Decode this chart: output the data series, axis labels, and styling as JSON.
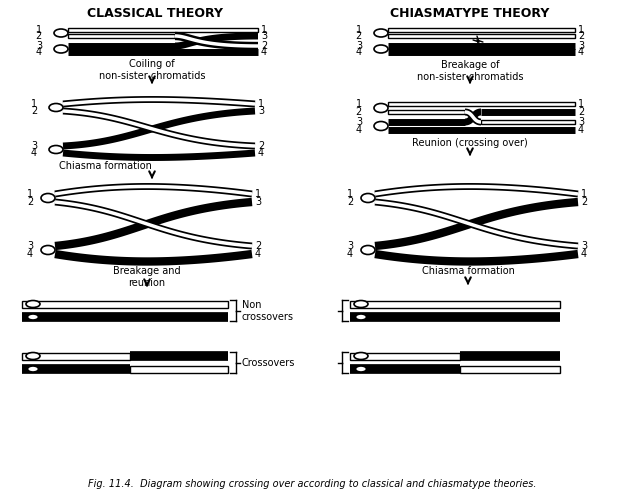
{
  "title_left": "CLASSICAL THEORY",
  "title_right": "CHIASMATYPE THEORY",
  "fig_caption": "Fig. 11.4.  Diagram showing crossing over according to classical and chiasmatype theories.",
  "bg_color": "#ffffff",
  "label1_classical": "Coiling of\nnon-sister chromatids",
  "label2_classical": "Chiasma formation",
  "label3_classical": "Breakage and\nreunion",
  "label1_chiasma": "Breakage of\nnon-sister chromatids",
  "label2_chiasma": "Reunion (crossing over)",
  "label3_chiasma": "Chiasma formation",
  "label_non_crossovers": "Non\ncrossovers",
  "label_crossovers": "Crossovers"
}
